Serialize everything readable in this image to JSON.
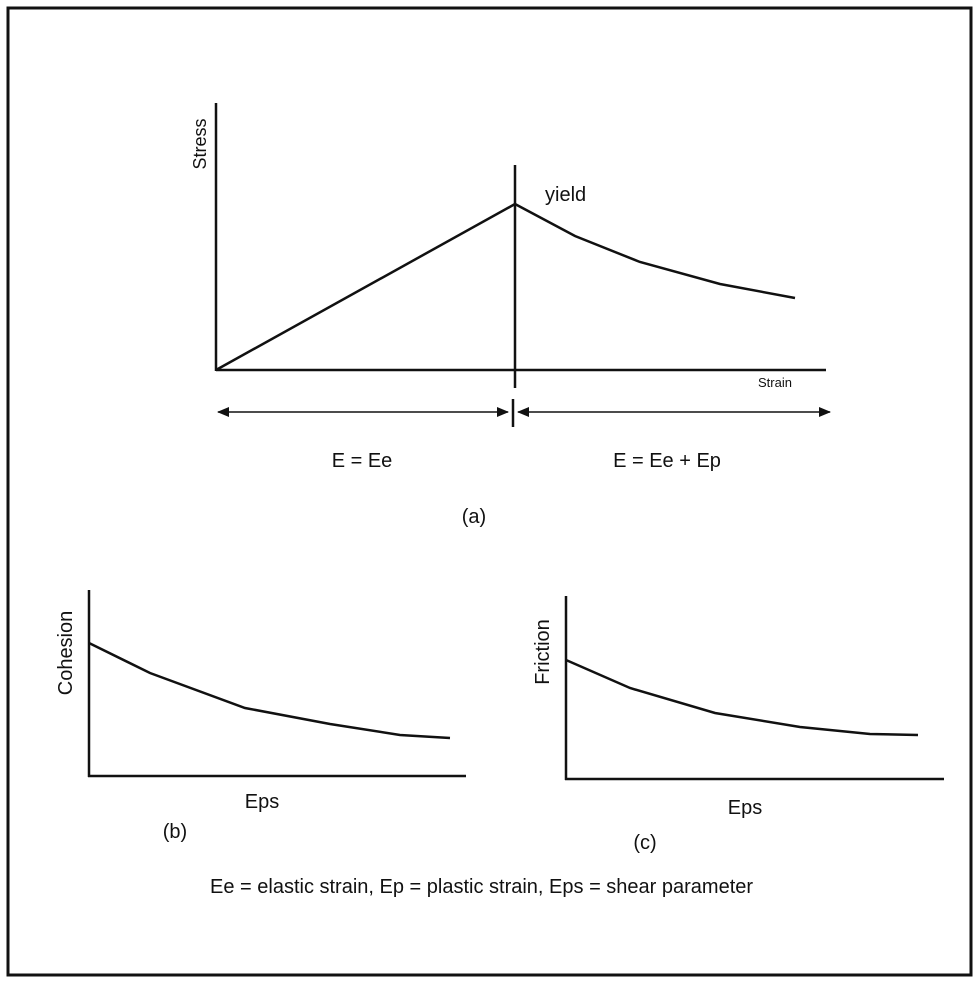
{
  "colors": {
    "ink": "#111111",
    "background": "#ffffff"
  },
  "panel_a": {
    "y_axis_label": "Stress",
    "x_axis_label": "Strain",
    "yield_label": "yield",
    "left_region_label": "E = Ee",
    "right_region_label": "E = Ee + Ep",
    "caption": "(a)"
  },
  "panel_b": {
    "y_axis_label": "Cohesion",
    "x_axis_label": "Eps",
    "caption": "(b)"
  },
  "panel_c": {
    "y_axis_label": "Friction",
    "x_axis_label": "Eps",
    "caption": "(c)"
  },
  "legend_text": "Ee = elastic strain, Ep = plastic strain, Eps = shear parameter"
}
